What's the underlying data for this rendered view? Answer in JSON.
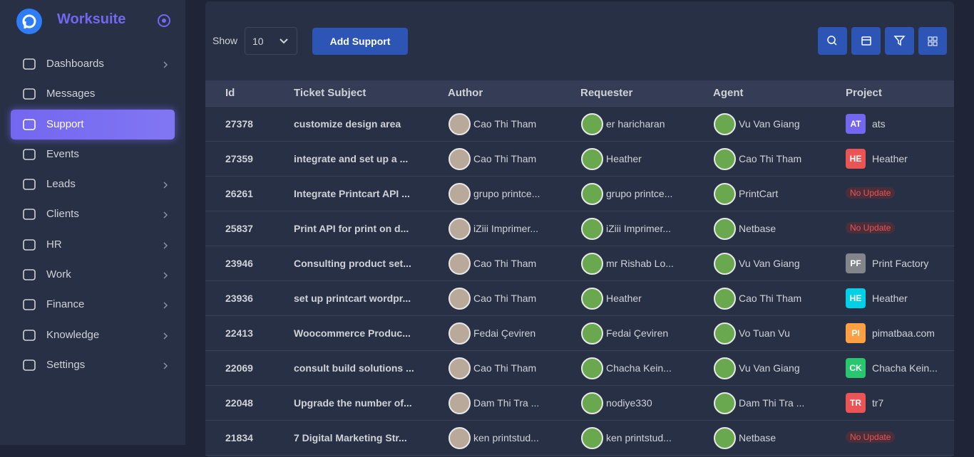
{
  "sidebar": {
    "brand": "Worksuite",
    "menu": [
      {
        "label": "Dashboards",
        "has_submenu": true
      },
      {
        "label": "Messages",
        "has_submenu": false
      },
      {
        "label": "Support",
        "has_submenu": false,
        "active": true
      },
      {
        "label": "Events",
        "has_submenu": false
      },
      {
        "label": "Leads",
        "has_submenu": true
      },
      {
        "label": "Clients",
        "has_submenu": true
      },
      {
        "label": "HR",
        "has_submenu": true
      },
      {
        "label": "Work",
        "has_submenu": true
      },
      {
        "label": "Finance",
        "has_submenu": true
      },
      {
        "label": "Knowledge",
        "has_submenu": true
      },
      {
        "label": "Settings",
        "has_submenu": true
      }
    ]
  },
  "toolbar": {
    "show_label": "Show",
    "page_size": "10",
    "add_button": "Add Support"
  },
  "table": {
    "columns": [
      "Id",
      "Ticket Subject",
      "Author",
      "Requester",
      "Agent",
      "Project"
    ],
    "rows": [
      [
        "27378",
        "customize design area",
        "Cao Thi Tham",
        "er haricharan",
        "Vu Van Giang",
        {
          "badge": "AT",
          "color": "#7367f0",
          "name": "ats"
        }
      ],
      [
        "27359",
        "integrate and set up a ...",
        "Cao Thi Tham",
        "Heather",
        "Cao Thi Tham",
        {
          "badge": "HE",
          "color": "#ea5455",
          "name": "Heather"
        }
      ],
      [
        "26261",
        "Integrate Printcart API ...",
        "grupo printce...",
        "grupo printce...",
        "PrintCart",
        {
          "status": "No Update"
        }
      ],
      [
        "25837",
        "Print API for print on d...",
        "iZiii Imprimer...",
        "iZiii Imprimer...",
        "Netbase",
        {
          "status": "No Update"
        }
      ],
      [
        "23946",
        "Consulting product set...",
        "Cao Thi Tham",
        "mr Rishab Lo...",
        "Vu Van Giang",
        {
          "badge": "PF",
          "color": "#82868b",
          "name": "Print Factory"
        }
      ],
      [
        "23936",
        "set up printcart wordpr...",
        "Cao Thi Tham",
        "Heather",
        "Cao Thi Tham",
        {
          "badge": "HE",
          "color": "#00cfe8",
          "name": "Heather"
        }
      ],
      [
        "22413",
        "Woocommerce Produc...",
        "Fedai Çeviren",
        "Fedai Çeviren",
        "Vo Tuan Vu",
        {
          "badge": "PI",
          "color": "#ff9f43",
          "name": "pimatbaa.com"
        }
      ],
      [
        "22069",
        "consult build solutions ...",
        "Cao Thi Tham",
        "Chacha Kein...",
        "Vu Van Giang",
        {
          "badge": "CK",
          "color": "#28c76f",
          "name": "Chacha Kein..."
        }
      ],
      [
        "22048",
        "Upgrade the number of...",
        "Dam Thi Tra ...",
        "nodiye330",
        "Dam Thi Tra ...",
        {
          "badge": "TR",
          "color": "#ea5455",
          "name": "tr7"
        }
      ],
      [
        "21834",
        "7 Digital Marketing Str...",
        "ken printstud...",
        "ken printstud...",
        "Netbase",
        {
          "status": "No Update"
        }
      ]
    ]
  }
}
